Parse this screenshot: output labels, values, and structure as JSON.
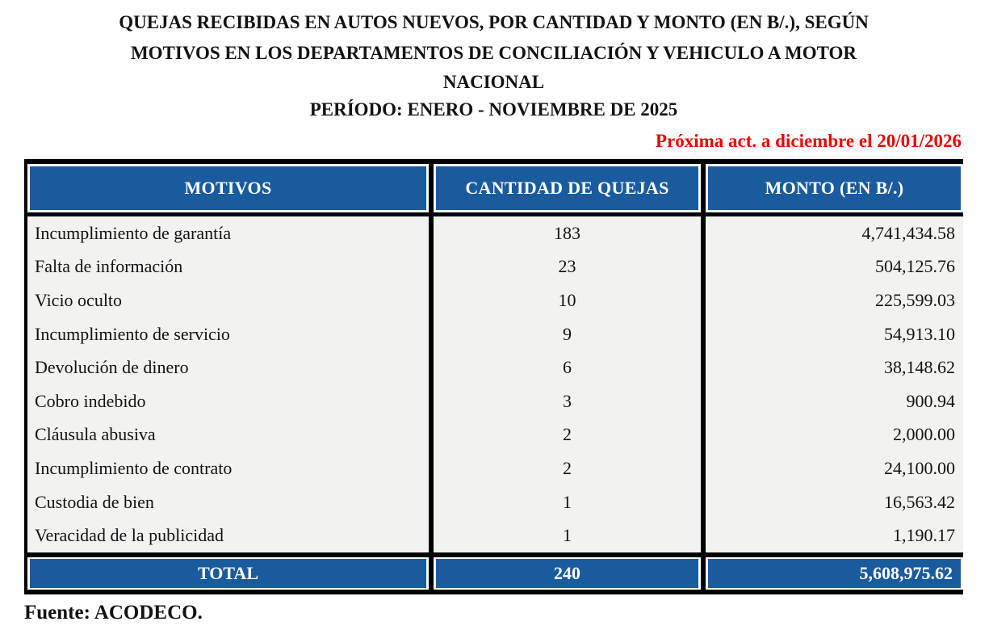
{
  "header": {
    "title_line1": "QUEJAS RECIBIDAS EN AUTOS NUEVOS, POR CANTIDAD Y MONTO (EN B/.), SEGÚN",
    "title_line2": "MOTIVOS EN LOS DEPARTAMENTOS DE CONCILIACIÓN Y VEHICULO A MOTOR",
    "region": "NACIONAL",
    "period": "PERÍODO: ENERO - NOVIEMBRE DE 2025",
    "update_note": "Próxima act. a diciembre el 20/01/2026"
  },
  "table": {
    "columns": {
      "motivos": "MOTIVOS",
      "cantidad": "CANTIDAD DE QUEJAS",
      "monto": "MONTO (EN B/.)"
    },
    "rows": [
      {
        "motivo": "Incumplimiento de garantía",
        "cantidad": "183",
        "monto": "4,741,434.58"
      },
      {
        "motivo": "Falta de información",
        "cantidad": "23",
        "monto": "504,125.76"
      },
      {
        "motivo": "Vicio oculto",
        "cantidad": "10",
        "monto": "225,599.03"
      },
      {
        "motivo": "Incumplimiento de servicio",
        "cantidad": "9",
        "monto": "54,913.10"
      },
      {
        "motivo": "Devolución de dinero",
        "cantidad": "6",
        "monto": "38,148.62"
      },
      {
        "motivo": "Cobro indebido",
        "cantidad": "3",
        "monto": "900.94"
      },
      {
        "motivo": "Cláusula abusiva",
        "cantidad": "2",
        "monto": "2,000.00"
      },
      {
        "motivo": "Incumplimiento de contrato",
        "cantidad": "2",
        "monto": "24,100.00"
      },
      {
        "motivo": "Custodia de bien",
        "cantidad": "1",
        "monto": "16,563.42"
      },
      {
        "motivo": "Veracidad de la publicidad",
        "cantidad": "1",
        "monto": "1,190.17"
      }
    ],
    "total": {
      "label": "TOTAL",
      "cantidad": "240",
      "monto": "5,608,975.62"
    }
  },
  "footer": {
    "source": "Fuente: ACODECO."
  },
  "colors": {
    "header_blue": "#1a5b9e",
    "note_red": "#ee0000",
    "body_bg": "#f2f2f0",
    "border_black": "#000000"
  },
  "chart_data": {
    "type": "table",
    "title": "QUEJAS RECIBIDAS EN AUTOS NUEVOS, POR CANTIDAD Y MONTO (EN B/.), SEGÚN MOTIVOS EN LOS DEPARTAMENTOS DE CONCILIACIÓN Y VEHICULO A MOTOR",
    "subtitle": "NACIONAL — PERÍODO: ENERO - NOVIEMBRE DE 2025",
    "columns": [
      "MOTIVOS",
      "CANTIDAD DE QUEJAS",
      "MONTO (EN B/.)"
    ],
    "categories": [
      "Incumplimiento de garantía",
      "Falta de información",
      "Vicio oculto",
      "Incumplimiento de servicio",
      "Devolución de dinero",
      "Cobro indebido",
      "Cláusula abusiva",
      "Incumplimiento de contrato",
      "Custodia de bien",
      "Veracidad de la publicidad"
    ],
    "series": [
      {
        "name": "CANTIDAD DE QUEJAS",
        "values": [
          183,
          23,
          10,
          9,
          6,
          3,
          2,
          2,
          1,
          1
        ]
      },
      {
        "name": "MONTO (EN B/.)",
        "values": [
          4741434.58,
          504125.76,
          225599.03,
          54913.1,
          38148.62,
          900.94,
          2000.0,
          24100.0,
          16563.42,
          1190.17
        ]
      }
    ],
    "total": {
      "cantidad": 240,
      "monto": 5608975.62
    },
    "source": "Fuente: ACODECO."
  }
}
